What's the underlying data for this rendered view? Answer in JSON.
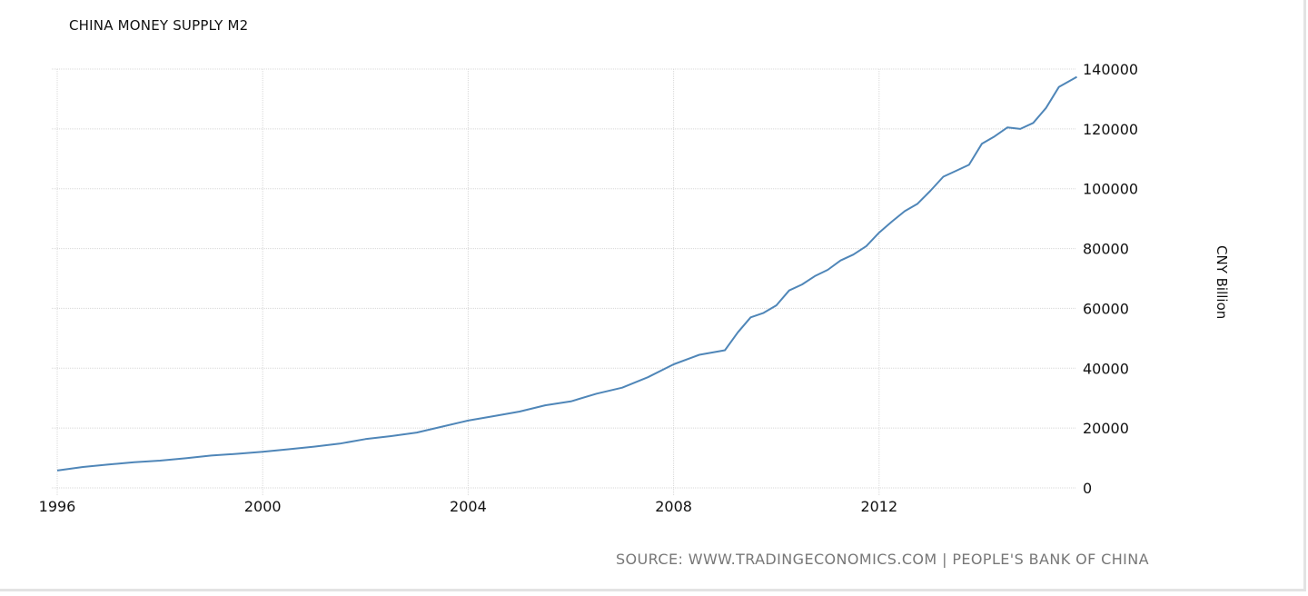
{
  "header": {
    "title": "CHINA MONEY SUPPLY M2"
  },
  "axis": {
    "y_label": "CNY Billion"
  },
  "footer": {
    "source": "SOURCE: WWW.TRADINGECONOMICS.COM | PEOPLE'S BANK OF CHINA"
  },
  "colors": {
    "line": "#4f86b8",
    "grid": "#d8d8d8",
    "source_text": "#777777"
  },
  "chart_data": {
    "type": "line",
    "title": "CHINA MONEY SUPPLY M2",
    "xlabel": "",
    "ylabel": "CNY Billion",
    "ylim": [
      0,
      140000
    ],
    "xlim": [
      1996,
      2015.85
    ],
    "y_ticks": [
      0,
      20000,
      40000,
      60000,
      80000,
      100000,
      120000,
      140000
    ],
    "x_ticks": [
      "1996",
      "2000",
      "2004",
      "2008",
      "2012"
    ],
    "grid": true,
    "y_axis_position": "right",
    "legend": null,
    "source": "SOURCE: WWW.TRADINGECONOMICS.COM | PEOPLE'S BANK OF CHINA",
    "series": [
      {
        "name": "China Money Supply M2",
        "x": [
          1996.0,
          1996.5,
          1997.0,
          1997.5,
          1998.0,
          1998.5,
          1999.0,
          1999.5,
          2000.0,
          2000.5,
          2001.0,
          2001.5,
          2002.0,
          2002.5,
          2003.0,
          2003.5,
          2004.0,
          2004.5,
          2005.0,
          2005.5,
          2006.0,
          2006.5,
          2007.0,
          2007.5,
          2008.0,
          2008.5,
          2009.0,
          2009.25,
          2009.5,
          2009.75,
          2010.0,
          2010.25,
          2010.5,
          2010.75,
          2011.0,
          2011.25,
          2011.5,
          2011.75,
          2012.0,
          2012.25,
          2012.5,
          2012.75,
          2013.0,
          2013.25,
          2013.5,
          2013.75,
          2014.0,
          2014.25,
          2014.5,
          2014.75,
          2015.0,
          2015.25,
          2015.5,
          2015.85
        ],
        "values": [
          5800,
          7000,
          7800,
          8600,
          9100,
          9900,
          10800,
          11400,
          12100,
          12900,
          13800,
          14800,
          16300,
          17300,
          18500,
          20500,
          22500,
          24000,
          25500,
          27600,
          28900,
          31500,
          33500,
          37000,
          41300,
          44500,
          46000,
          52000,
          57000,
          58500,
          61000,
          66000,
          68000,
          70800,
          72900,
          76000,
          78000,
          80800,
          85300,
          89000,
          92500,
          95000,
          99300,
          104000,
          106000,
          108000,
          115000,
          117500,
          120500,
          120000,
          122000,
          127000,
          134000,
          137400
        ]
      }
    ]
  }
}
